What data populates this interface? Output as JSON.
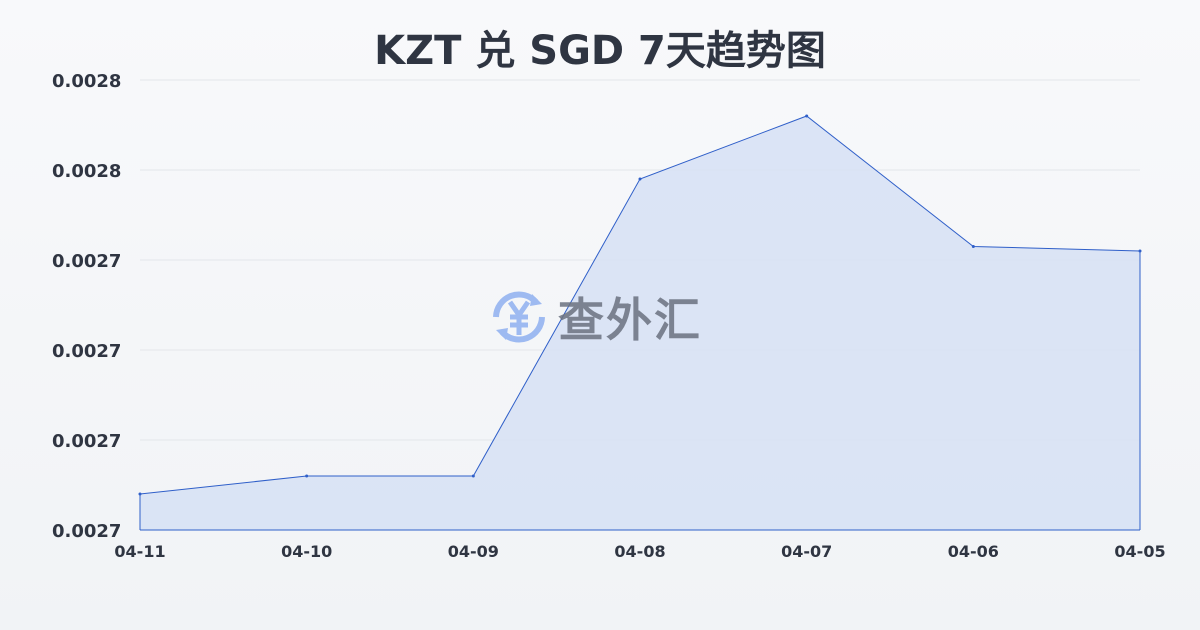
{
  "chart_data": {
    "type": "area",
    "title": "KZT 兑 SGD 7天趋势图",
    "categories": [
      "04-11",
      "04-10",
      "04-09",
      "04-08",
      "04-07",
      "04-06",
      "04-05"
    ],
    "values": [
      0.002688,
      0.002692,
      0.002692,
      0.002758,
      0.002772,
      0.002743,
      0.002742
    ],
    "ylim": [
      0.00268,
      0.00278
    ],
    "yticks": [
      0.00268,
      0.0027,
      0.00272,
      0.00274,
      0.00276,
      0.00278
    ],
    "ytick_labels": [
      "0.0027",
      "0.0027",
      "0.0027",
      "0.0027",
      "0.0028",
      "0.0028"
    ],
    "grid": true,
    "colors": {
      "line": "#2f5fc9",
      "fill": "#d6e0f5"
    }
  },
  "watermark": {
    "text": "查外汇",
    "icon": "yen-exchange-icon",
    "color": "#8fb0f0"
  }
}
